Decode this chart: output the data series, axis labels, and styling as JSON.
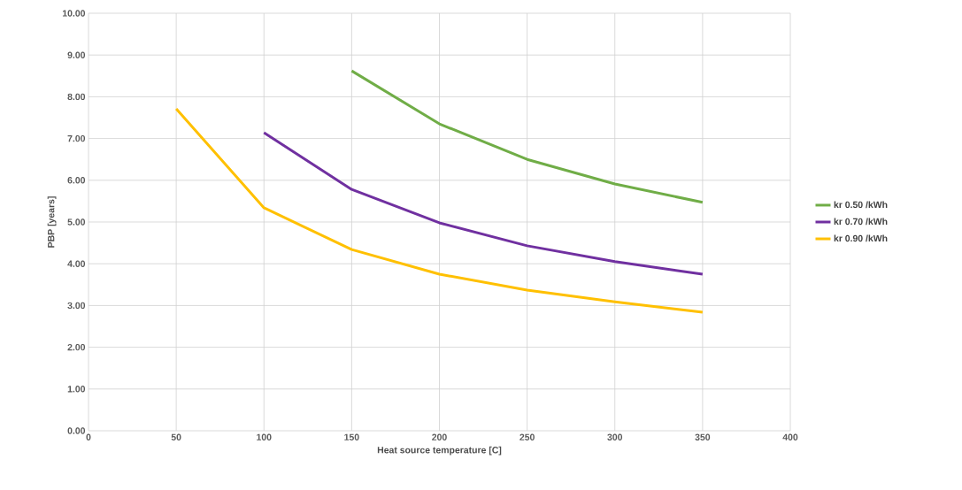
{
  "chart_data": {
    "type": "line",
    "xlabel": "Heat source temperature [C]",
    "ylabel": "PBP [years]",
    "xlim": [
      0,
      400
    ],
    "xticks": [
      0,
      50,
      100,
      150,
      200,
      250,
      300,
      350,
      400
    ],
    "ylim": [
      0,
      10
    ],
    "yticks": [
      {
        "value": 0,
        "label": "0.00"
      },
      {
        "value": 1,
        "label": "1.00"
      },
      {
        "value": 2,
        "label": "2.00"
      },
      {
        "value": 3,
        "label": "3.00"
      },
      {
        "value": 4,
        "label": "4.00"
      },
      {
        "value": 5,
        "label": "5.00"
      },
      {
        "value": 6,
        "label": "6.00"
      },
      {
        "value": 7,
        "label": "7.00"
      },
      {
        "value": 8,
        "label": "8.00"
      },
      {
        "value": 9,
        "label": "9.00"
      },
      {
        "value": 10,
        "label": "10.00"
      }
    ],
    "grid": true,
    "legend": "right",
    "marker": "none",
    "line_style": "solid",
    "series": [
      {
        "name": "kr 0.50 /kWh",
        "color": "#70ad47",
        "x": [
          150,
          200,
          250,
          300,
          350
        ],
        "values": [
          8.62,
          7.35,
          6.5,
          5.91,
          5.47
        ]
      },
      {
        "name": "kr 0.70 /kWh",
        "color": "#7030a0",
        "x": [
          100,
          150,
          200,
          250,
          300,
          350
        ],
        "values": [
          7.14,
          5.78,
          4.98,
          4.43,
          4.05,
          3.75
        ]
      },
      {
        "name": "kr 0.90 /kWh",
        "color": "#ffc000",
        "x": [
          50,
          100,
          150,
          200,
          250,
          300,
          350
        ],
        "values": [
          7.71,
          5.34,
          4.34,
          3.75,
          3.37,
          3.09,
          2.84
        ]
      }
    ]
  }
}
